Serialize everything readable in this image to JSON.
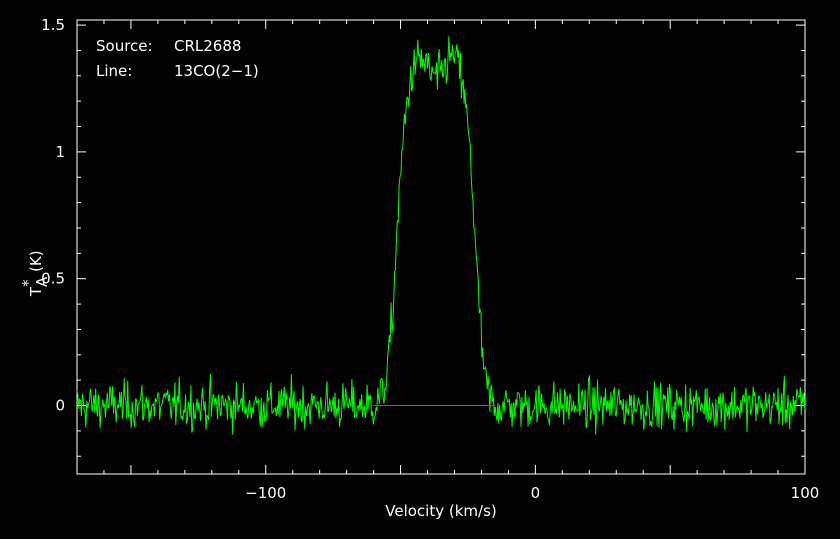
{
  "chart_data": {
    "type": "line",
    "xlabel": "Velocity (km/s)",
    "ylabel": "T",
    "ylabel_sub": "A",
    "ylabel_sup": "*",
    "ylabel_unit": "(K)",
    "xlim": [
      -170,
      100
    ],
    "ylim": [
      -0.27,
      1.52
    ],
    "x_ticks": [
      -100,
      0,
      100
    ],
    "x_tick_labels": [
      "−100",
      "0",
      "100"
    ],
    "y_ticks": [
      0,
      0.5,
      1,
      1.5
    ],
    "y_tick_labels": [
      "0",
      "0.5",
      "1",
      "1.5"
    ],
    "annotations": [
      {
        "label": "Source:",
        "value": "CRL2688"
      },
      {
        "label": "Line:",
        "value": "13CO(2−1)"
      }
    ],
    "baseline": {
      "x_start": -60,
      "x_end": -15,
      "y": 0,
      "color": "#ff2020"
    },
    "series": [
      {
        "color": "#00ff00",
        "profile": [
          [
            -170,
            0.0
          ],
          [
            -60,
            0.0
          ],
          [
            -57,
            0.04
          ],
          [
            -55,
            0.12
          ],
          [
            -53,
            0.35
          ],
          [
            -51,
            0.75
          ],
          [
            -49,
            1.05
          ],
          [
            -47,
            1.25
          ],
          [
            -45,
            1.33
          ],
          [
            -43,
            1.37
          ],
          [
            -41,
            1.35
          ],
          [
            -39,
            1.31
          ],
          [
            -37,
            1.29
          ],
          [
            -35,
            1.3
          ],
          [
            -33,
            1.35
          ],
          [
            -31,
            1.38
          ],
          [
            -29,
            1.36
          ],
          [
            -27,
            1.27
          ],
          [
            -25,
            1.1
          ],
          [
            -23,
            0.8
          ],
          [
            -21,
            0.4
          ],
          [
            -19,
            0.12
          ],
          [
            -17,
            0.03
          ],
          [
            -15,
            0.0
          ],
          [
            100,
            0.0
          ]
        ],
        "noise_rms": 0.045,
        "channel_width_kms": 0.33
      }
    ]
  },
  "colors": {
    "background": "#000000",
    "axes": "#ffffff",
    "spectrum": "#00ff00",
    "baseline": "#ff2020"
  }
}
